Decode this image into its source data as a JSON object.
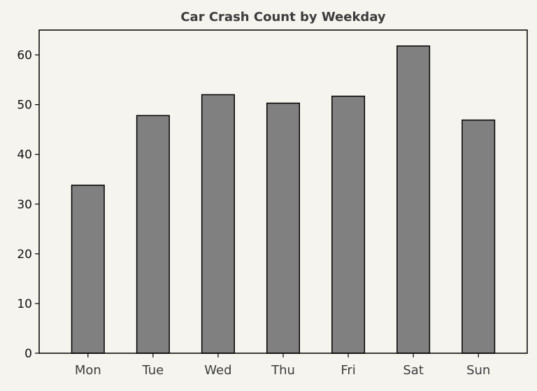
{
  "colors": {
    "background": "#f5f4ef",
    "bar_fill": "#808080",
    "bar_edge": "#000000",
    "axis": "#000000",
    "title": "#3c3c3c"
  },
  "chart_data": {
    "type": "bar",
    "title": "Car Crash Count by Weekday",
    "xlabel": "",
    "ylabel": "",
    "categories": [
      "Mon",
      "Tue",
      "Wed",
      "Thu",
      "Fri",
      "Sat",
      "Sun"
    ],
    "values": [
      33.8,
      47.8,
      52.0,
      50.3,
      51.7,
      61.8,
      46.9
    ],
    "ylim": [
      0,
      65
    ],
    "yticks": [
      0,
      10,
      20,
      30,
      40,
      50,
      60
    ],
    "ytick_labels": [
      "0",
      "10",
      "20",
      "30",
      "40",
      "50",
      "60"
    ],
    "grid": false,
    "legend": "none"
  }
}
